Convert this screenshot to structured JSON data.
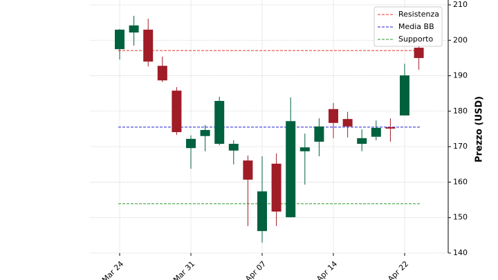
{
  "chart_data": {
    "type": "candlestick",
    "y_label": "Prezzo (USD)",
    "categories": [
      "Mar 24",
      null,
      null,
      null,
      null,
      "Mar 31",
      null,
      null,
      null,
      null,
      "Apr 07",
      null,
      null,
      null,
      null,
      "Apr 14",
      null,
      null,
      null,
      null,
      "Apr 22",
      null
    ],
    "open": [
      197.5,
      202.2,
      203.0,
      192.8,
      185.8,
      169.6,
      173.0,
      170.8,
      168.9,
      166.1,
      146.2,
      165.2,
      150.1,
      168.7,
      171.4,
      180.6,
      177.8,
      170.8,
      172.8,
      175.5,
      178.8,
      197.9
    ],
    "high": [
      203.2,
      206.9,
      206.1,
      195.4,
      186.8,
      173.2,
      176.1,
      184.1,
      171.8,
      167.5,
      167.3,
      168.1,
      183.9,
      173.7,
      178.0,
      182.3,
      179.8,
      174.9,
      177.4,
      178.0,
      193.4,
      198.9
    ],
    "low": [
      194.6,
      198.5,
      192.6,
      188.2,
      173.3,
      163.8,
      168.7,
      170.4,
      165.0,
      147.6,
      142.9,
      147.6,
      150.1,
      159.3,
      167.3,
      172.4,
      172.6,
      168.7,
      171.8,
      171.4,
      178.8,
      191.7
    ],
    "close": [
      203.0,
      204.2,
      194.0,
      188.7,
      174.1,
      172.2,
      174.7,
      182.9,
      170.8,
      160.7,
      157.4,
      151.7,
      177.2,
      169.8,
      175.7,
      176.7,
      175.7,
      172.4,
      175.3,
      175.1,
      190.1,
      195.0
    ],
    "up_color": "#00613e",
    "down_color": "#a01c26",
    "lines": [
      {
        "name": "Resistenza",
        "value": 197.1,
        "color": "#e8322c"
      },
      {
        "name": "Media BB",
        "value": 175.5,
        "color": "#1f1fd6"
      },
      {
        "name": "Supporto",
        "value": 153.9,
        "color": "#2a9a2a"
      }
    ],
    "ylim": [
      140,
      210
    ],
    "yticks": [
      140,
      150,
      160,
      170,
      180,
      190,
      200,
      210
    ],
    "grid": true,
    "legend": "upper right"
  }
}
